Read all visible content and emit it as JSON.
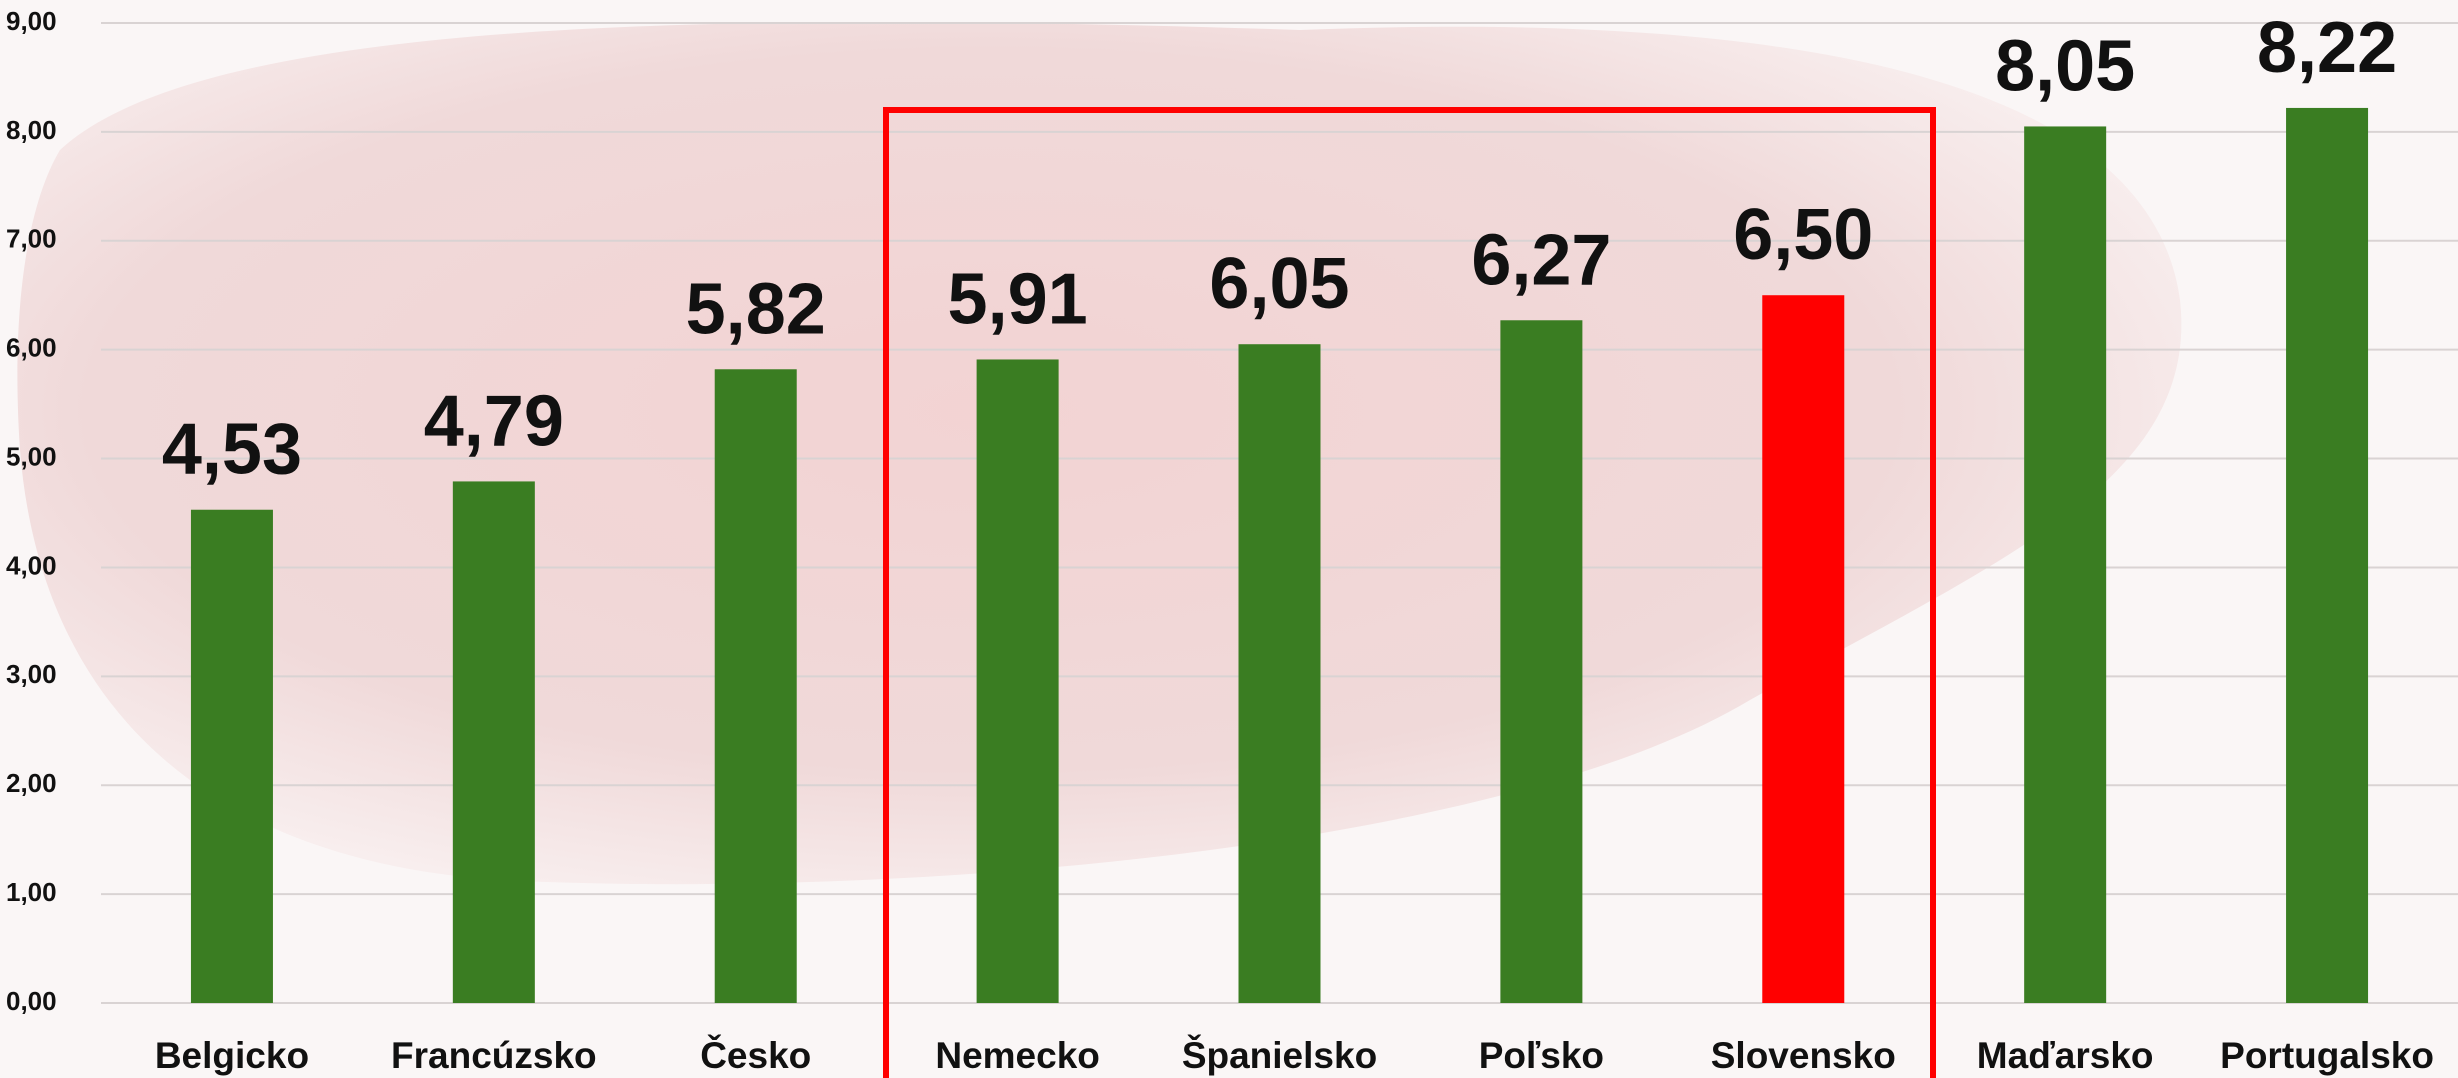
{
  "chart_data": {
    "type": "bar",
    "categories": [
      "Belgicko",
      "Francúzsko",
      "Česko",
      "Nemecko",
      "Španielsko",
      "Poľsko",
      "Slovensko",
      "Maďarsko",
      "Portugalsko"
    ],
    "values": [
      4.53,
      4.79,
      5.82,
      5.91,
      6.05,
      6.27,
      6.5,
      8.05,
      8.22
    ],
    "value_labels": [
      "4,53",
      "4,79",
      "5,82",
      "5,91",
      "6,05",
      "6,27",
      "6,50",
      "8,05",
      "8,22"
    ],
    "colors": [
      "#3a7d22",
      "#3a7d22",
      "#3a7d22",
      "#3a7d22",
      "#3a7d22",
      "#3a7d22",
      "#ff0000",
      "#3a7d22",
      "#3a7d22"
    ],
    "ylim": [
      0,
      9
    ],
    "yticks": [
      {
        "value": 0,
        "label": "0,00"
      },
      {
        "value": 1,
        "label": "1,00"
      },
      {
        "value": 2,
        "label": "2,00"
      },
      {
        "value": 3,
        "label": "3,00"
      },
      {
        "value": 4,
        "label": "4,00"
      },
      {
        "value": 5,
        "label": "5,00"
      },
      {
        "value": 6,
        "label": "6,00"
      },
      {
        "value": 7,
        "label": "7,00"
      },
      {
        "value": 8,
        "label": "8,00"
      },
      {
        "value": 9,
        "label": "9,00"
      }
    ],
    "grid": true
  }
}
